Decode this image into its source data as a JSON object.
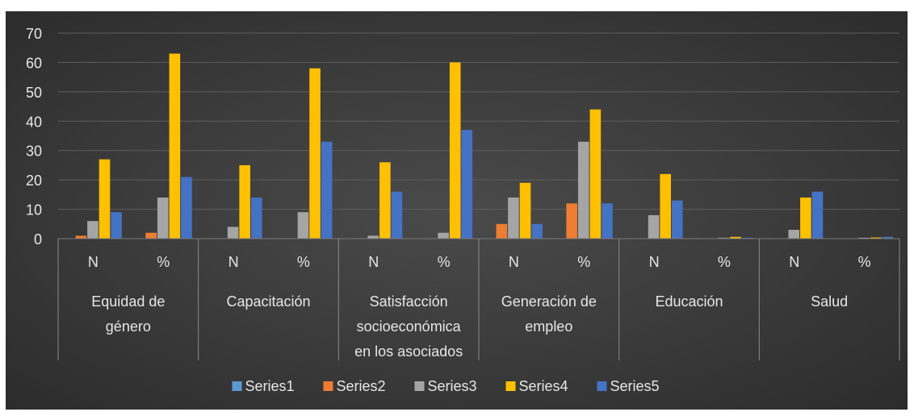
{
  "chart_data": {
    "type": "bar",
    "title": "",
    "xlabel": "",
    "ylabel": "",
    "ylim": [
      0,
      70
    ],
    "yticks": [
      0,
      10,
      20,
      30,
      40,
      50,
      60,
      70
    ],
    "grid": true,
    "legend_position": "bottom",
    "groups": [
      {
        "label": "Equidad de género",
        "lines": [
          "Equidad de",
          "género"
        ]
      },
      {
        "label": "Capacitación",
        "lines": [
          "Capacitación"
        ]
      },
      {
        "label": "Satisfacción socioeconómica en los asociados",
        "lines": [
          "Satisfacción",
          "socioeconómica",
          "en los asociados"
        ]
      },
      {
        "label": "Generación de empleo",
        "lines": [
          "Generación de",
          "empleo"
        ]
      },
      {
        "label": "Educación",
        "lines": [
          "Educación"
        ]
      },
      {
        "label": "Salud",
        "lines": [
          "Salud"
        ]
      }
    ],
    "categories": [
      "N",
      "%",
      "N",
      "%",
      "N",
      "%",
      "N",
      "%",
      "N",
      "%",
      "N",
      "%"
    ],
    "series": [
      {
        "name": "Series1",
        "color": "#5b9bd5",
        "values": [
          0,
          0,
          0,
          0,
          0,
          0,
          0,
          0,
          0,
          0,
          0,
          0
        ]
      },
      {
        "name": "Series2",
        "color": "#ed7d31",
        "values": [
          1,
          2,
          0,
          0,
          0,
          0,
          5,
          12,
          0,
          0,
          0,
          0
        ]
      },
      {
        "name": "Series3",
        "color": "#a5a5a5",
        "values": [
          6,
          14,
          4,
          9,
          1,
          2,
          14,
          33,
          8,
          0.3,
          3,
          0.3
        ]
      },
      {
        "name": "Series4",
        "color": "#ffc000",
        "values": [
          27,
          63,
          25,
          58,
          26,
          60,
          19,
          44,
          22,
          0.6,
          14,
          0.4
        ]
      },
      {
        "name": "Series5",
        "color": "#4472c4",
        "values": [
          9,
          21,
          14,
          33,
          16,
          37,
          5,
          12,
          13,
          0.3,
          16,
          0.6
        ]
      }
    ]
  }
}
